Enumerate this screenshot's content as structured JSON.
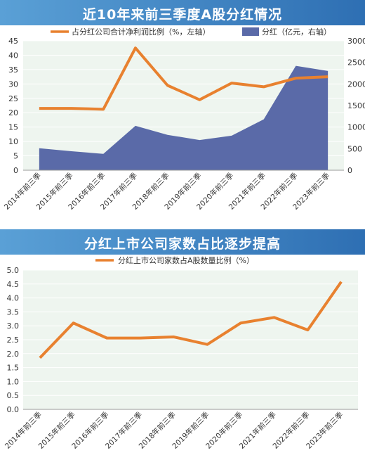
{
  "colors": {
    "banner_gradient_left": "#5aa0d6",
    "banner_gradient_right": "#2e6fb3",
    "line": "#e8812f",
    "area": "#5a6aa8",
    "plot_bg": "#eef5ef",
    "grid": "#ffffff"
  },
  "chart_data": [
    {
      "type": "line+area",
      "title": "近10年来前三季度A股分红情况",
      "categories": [
        "2014年前三季",
        "2015年前三季",
        "2016年前三季",
        "2017年前三季",
        "2018年前三季",
        "2019年前三季",
        "2020年前三季",
        "2021年前三季",
        "2022年前三季",
        "2023年前三季"
      ],
      "series": [
        {
          "name": "占分红公司合计净利润比例（%，左轴）",
          "type": "line",
          "axis": "left",
          "values": [
            21.5,
            21.5,
            21.2,
            42.5,
            29.5,
            24.5,
            30.3,
            29.0,
            32.0,
            32.5
          ]
        },
        {
          "name": "分红（亿元，右轴）",
          "type": "area",
          "axis": "right",
          "values": [
            510,
            440,
            380,
            1030,
            820,
            700,
            800,
            1180,
            2420,
            2300
          ]
        }
      ],
      "y_left": {
        "range": [
          0,
          45
        ],
        "ticks": [
          "0",
          "5",
          "10",
          "15",
          "20",
          "25",
          "30",
          "35",
          "40",
          "45"
        ]
      },
      "y_right": {
        "range": [
          0,
          3000
        ],
        "ticks": [
          "0",
          "500",
          "1000",
          "1500",
          "2000",
          "2500",
          "3000"
        ]
      },
      "legend_placement": "top"
    },
    {
      "type": "line",
      "title": "分红上市公司家数占比逐步提高",
      "categories": [
        "2014年前三季",
        "2015年前三季",
        "2016年前三季",
        "2017年前三季",
        "2018年前三季",
        "2019年前三季",
        "2020年前三季",
        "2021年前三季",
        "2022年前三季",
        "2023年前三季"
      ],
      "series": [
        {
          "name": "分红上市公司家数占A股数量比例（%）",
          "values": [
            1.85,
            3.1,
            2.56,
            2.56,
            2.6,
            2.33,
            3.1,
            3.3,
            2.85,
            4.58
          ]
        }
      ],
      "ylim": [
        0,
        5
      ],
      "y_ticks": [
        "0.0",
        "0.5",
        "1.0",
        "1.5",
        "2.0",
        "2.5",
        "3.0",
        "3.5",
        "4.0",
        "4.5",
        "5.0"
      ],
      "legend_placement": "top"
    }
  ]
}
